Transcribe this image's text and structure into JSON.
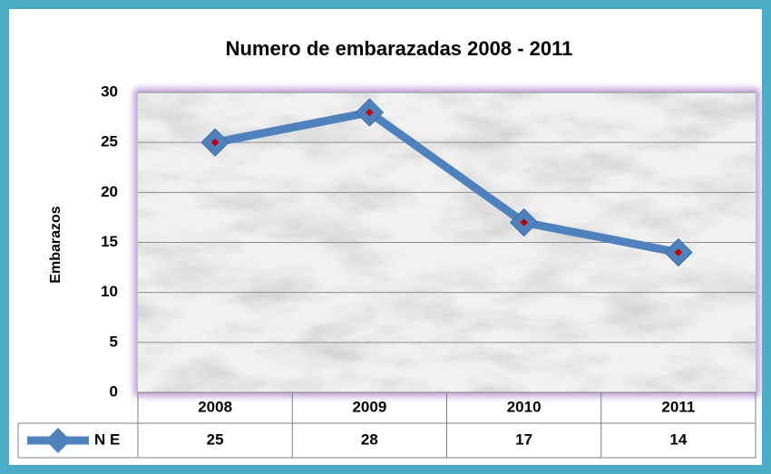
{
  "chart_data": {
    "type": "line",
    "title": "Numero de embarazadas 2008 - 2011",
    "y_label": "Embarazos",
    "categories": [
      "2008",
      "2009",
      "2010",
      "2011"
    ],
    "series": [
      {
        "name": "N E",
        "color": "#4f81bd",
        "values": [
          25,
          28,
          17,
          14
        ]
      }
    ],
    "ylim": [
      0,
      30
    ],
    "yticks": [
      0,
      5,
      10,
      15,
      20,
      25,
      30
    ],
    "grid": true,
    "data_table": true
  }
}
